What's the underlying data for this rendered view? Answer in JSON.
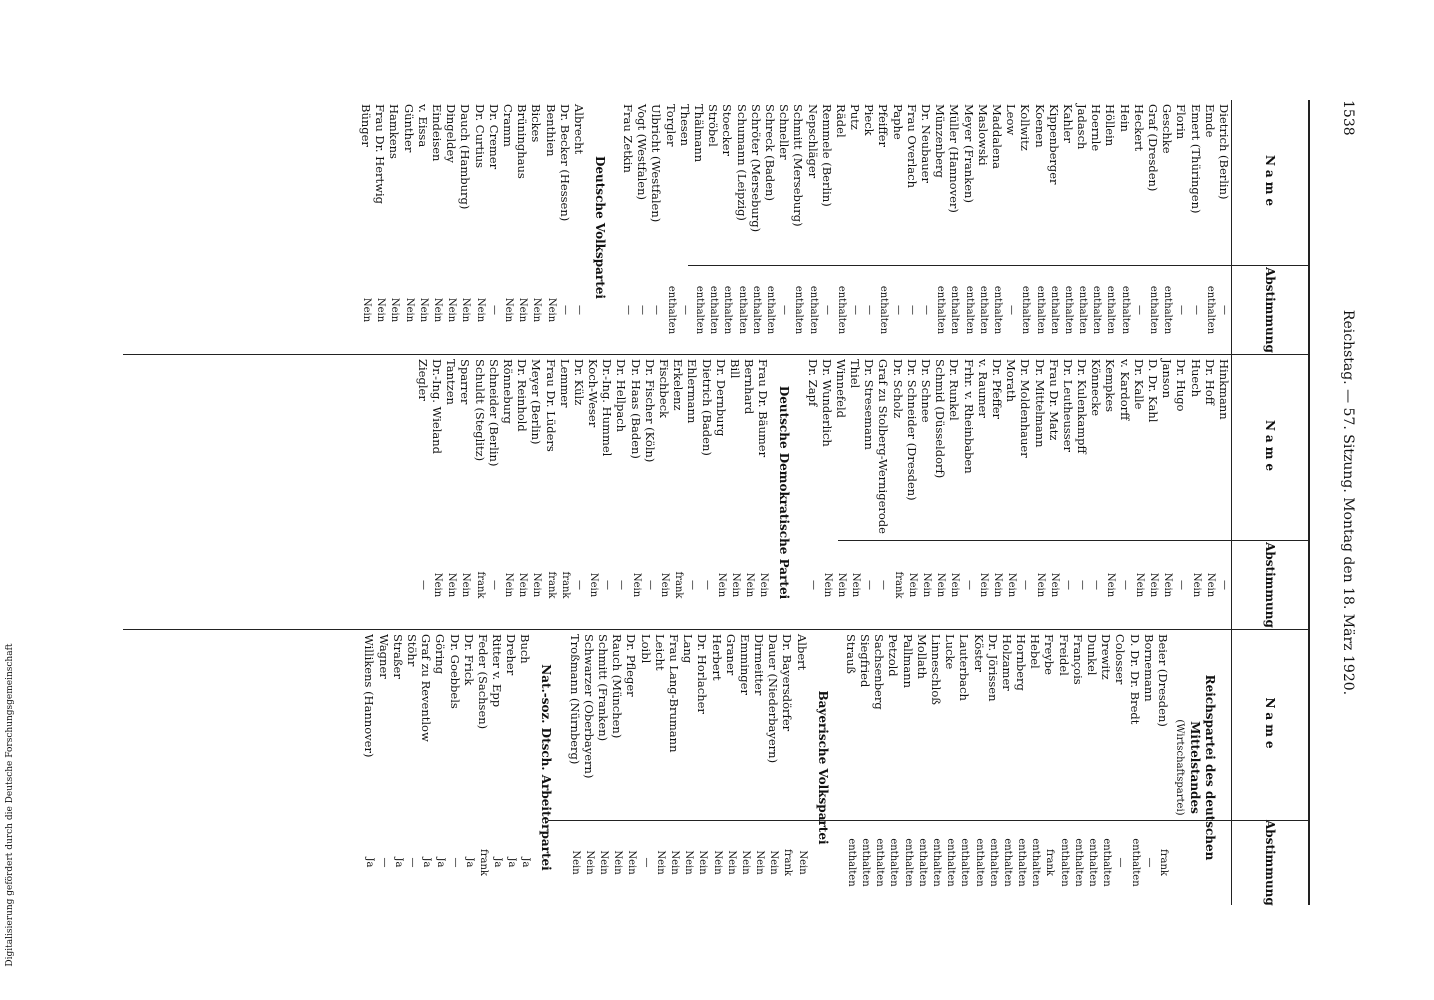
{
  "header": {
    "page": "1538",
    "title": "Reichstag. — 57. Sitzung. Montag den 18. März 1920."
  },
  "footer_note": "Digitalisierung gefördert durch die Deutsche Forschungsgemeinschaft",
  "columns": [
    {
      "name_header": "Name",
      "vote_header": "Abstimmung",
      "sections": [
        {
          "rows": [
            [
              "Dietrich (Berlin)",
              "—"
            ],
            [
              "Emde",
              "enthalten"
            ],
            [
              "Emert (Thüringen)",
              "—"
            ],
            [
              "Florin",
              "—"
            ],
            [
              "Geschke",
              "enthalten"
            ],
            [
              "Graf (Dresden)",
              "enthalten"
            ],
            [
              "Heckert",
              "—"
            ],
            [
              "Hein",
              "enthalten"
            ],
            [
              "Höllein",
              "enthalten"
            ],
            [
              "Hoernle",
              "enthalten"
            ],
            [
              "Jadasch",
              "enthalten"
            ],
            [
              "Kahler",
              "enthalten"
            ],
            [
              "Kippenberger",
              "enthalten"
            ],
            [
              "Koenen",
              "enthalten"
            ],
            [
              "Kollwitz",
              "enthalten"
            ],
            [
              "Leow",
              "—"
            ],
            [
              "Maddalena",
              "enthalten"
            ],
            [
              "Maslowski",
              "enthalten"
            ],
            [
              "Meyer (Franken)",
              "enthalten"
            ],
            [
              "Müller (Hannover)",
              "enthalten"
            ],
            [
              "Münzenberg",
              "enthalten"
            ],
            [
              "Dr. Neubauer",
              "—"
            ],
            [
              "Frau Overlach",
              "—"
            ],
            [
              "Paphe",
              "—"
            ],
            [
              "Pfeiffer",
              "enthalten"
            ],
            [
              "Pieck",
              "—"
            ],
            [
              "Putz",
              "—"
            ],
            [
              "Rädel",
              "enthalten"
            ],
            [
              "Remmele (Berlin)",
              "—"
            ],
            [
              "Nepschläger",
              "enthalten"
            ],
            [
              "Schmitt (Merseburg)",
              "enthalten"
            ],
            [
              "Schneller",
              "—"
            ],
            [
              "Schreck (Baden)",
              "enthalten"
            ],
            [
              "Schröter (Merseburg)",
              "enthalten"
            ],
            [
              "Schumann (Leipzig)",
              "enthalten"
            ],
            [
              "Stoecker",
              "enthalten"
            ],
            [
              "Ströbel",
              "enthalten"
            ],
            [
              "Thälmann",
              "enthalten"
            ],
            [
              "Thesen",
              "—"
            ],
            [
              "Torgler",
              "enthalten"
            ],
            [
              "Ulbricht (Westfalen)",
              "—"
            ],
            [
              "Vogt (Westfalen)",
              "—"
            ],
            [
              "Frau Zetkin",
              "—"
            ]
          ]
        },
        {
          "heading": "Deutsche Volkspartei",
          "rows": [
            [
              "Albrecht",
              "—"
            ],
            [
              "Dr. Becker (Hessen)",
              "—"
            ],
            [
              "Benthien",
              "Nein"
            ],
            [
              "Bickes",
              "Nein"
            ],
            [
              "Brüninghaus",
              "Nein"
            ],
            [
              "Cramm",
              "Nein"
            ],
            [
              "Dr. Cremer",
              "—"
            ],
            [
              "Dr. Curtius",
              "Nein"
            ],
            [
              "Dauch (Hamburg)",
              "Nein"
            ],
            [
              "Dingeldey",
              "Nein"
            ],
            [
              "Eindeisen",
              "Nein"
            ],
            [
              "v. Eissa",
              "Nein"
            ],
            [
              "Günther",
              "Nein"
            ],
            [
              "Hamkens",
              "Nein"
            ],
            [
              "Frau Dr. Hertwig",
              "Nein"
            ],
            [
              "Bünger",
              "Nein"
            ]
          ]
        }
      ]
    },
    {
      "name_header": "Name",
      "vote_header": "Abstimmung",
      "sections": [
        {
          "rows": [
            [
              "Hinkmann",
              "—"
            ],
            [
              "Dr. Hoff",
              "Nein"
            ],
            [
              "Huech",
              "Nein"
            ],
            [
              "Dr. Hugo",
              "—"
            ],
            [
              "Janson",
              "Nein"
            ],
            [
              "D. Dr. Kahl",
              "Nein"
            ],
            [
              "Dr. Kalle",
              "Nein"
            ],
            [
              "v. Kardorff",
              "—"
            ],
            [
              "Kempkes",
              "Nein"
            ],
            [
              "Könnecke",
              "—"
            ],
            [
              "Dr. Kulenkampff",
              "—"
            ],
            [
              "Dr. Leutheusser",
              "—"
            ],
            [
              "Frau Dr. Matz",
              "Nein"
            ],
            [
              "Dr. Mittelmann",
              "Nein"
            ],
            [
              "Dr. Moldenhauer",
              "—"
            ],
            [
              "Morath",
              "Nein"
            ],
            [
              "Dr. Pfeffer",
              "Nein"
            ],
            [
              "v. Raumer",
              "Nein"
            ],
            [
              "Frhr. v. Rheinbaben",
              "—"
            ],
            [
              "Dr. Runkel",
              "Nein"
            ],
            [
              "Schmid (Düsseldorf)",
              "Nein"
            ],
            [
              "Dr. Schnee",
              "Nein"
            ],
            [
              "Dr. Schneider (Dresden)",
              "Nein"
            ],
            [
              "Dr. Scholz",
              "frank"
            ],
            [
              "Graf zu Stolberg-Wernigerode",
              "—"
            ],
            [
              "Dr. Stresemann",
              "—"
            ],
            [
              "Thiel",
              "Nein"
            ],
            [
              "Winnefeld",
              "Nein"
            ],
            [
              "Dr. Wunderlich",
              "Nein"
            ],
            [
              "Dr. Zapf",
              "—"
            ]
          ]
        },
        {
          "heading": "Deutsche Demokratische Partei",
          "rows": [
            [
              "Frau Dr. Bäumer",
              "Nein"
            ],
            [
              "Bernhard",
              "Nein"
            ],
            [
              "Bill",
              "Nein"
            ],
            [
              "Dr. Dernburg",
              "Nein"
            ],
            [
              "Dietrich (Baden)",
              "—"
            ],
            [
              "Ehlermann",
              "—"
            ],
            [
              "Erkelenz",
              "frank"
            ],
            [
              "Fischbeck",
              "Nein"
            ],
            [
              "Dr. Fischer (Köln)",
              "—"
            ],
            [
              "Dr. Haas (Baden)",
              "Nein"
            ],
            [
              "Dr. Hellpach",
              "—"
            ],
            [
              "Dr.-Ing. Hummel",
              "—"
            ],
            [
              "Koch-Weser",
              "Nein"
            ],
            [
              "Dr. Külz",
              "—"
            ],
            [
              "Lemmer",
              "frank"
            ],
            [
              "Frau Dr. Lüders",
              "frank"
            ],
            [
              "Meyer (Berlin)",
              "Nein"
            ],
            [
              "Dr. Reinhold",
              "Nein"
            ],
            [
              "Rönneburg",
              "Nein"
            ],
            [
              "Schneider (Berlin)",
              "—"
            ],
            [
              "Schuldt (Steglitz)",
              "frank"
            ],
            [
              "Sparrer",
              "Nein"
            ],
            [
              "Tantzen",
              "Nein"
            ],
            [
              "Dr.-Ing. Wieland",
              "Nein"
            ],
            [
              "Ziegler",
              "—"
            ]
          ]
        }
      ]
    },
    {
      "name_header": "Name",
      "vote_header": "Abstimmung",
      "sections": [
        {
          "heading": "Reichspartei des deutschen Mittelstandes",
          "subheading": "(Wirtschaftspartei)",
          "rows": [
            [
              "Beier (Dresden)",
              "frank"
            ],
            [
              "Bornemann",
              "—"
            ],
            [
              "D. Dr. Dr. Bredt",
              "enthalten"
            ],
            [
              "Colosser",
              "—"
            ],
            [
              "Drewitz",
              "enthalten"
            ],
            [
              "Dunkel",
              "enthalten"
            ],
            [
              "François",
              "enthalten"
            ],
            [
              "Freidel",
              "enthalten"
            ],
            [
              "Freybe",
              "frank"
            ],
            [
              "Hebel",
              "enthalten"
            ],
            [
              "Hornberg",
              "enthalten"
            ],
            [
              "Holzamer",
              "enthalten"
            ],
            [
              "Dr. Jörissen",
              "enthalten"
            ],
            [
              "Köster",
              "enthalten"
            ],
            [
              "Lauterbach",
              "enthalten"
            ],
            [
              "Lucke",
              "enthalten"
            ],
            [
              "Linneschloß",
              "enthalten"
            ],
            [
              "Mollath",
              "enthalten"
            ],
            [
              "Pallmann",
              "enthalten"
            ],
            [
              "Petzold",
              "enthalten"
            ],
            [
              "Sachsenberg",
              "enthalten"
            ],
            [
              "Siegfried",
              "enthalten"
            ],
            [
              "Strauß",
              "enthalten"
            ]
          ]
        },
        {
          "heading": "Bayerische Volkspartei",
          "rows": [
            [
              "Albert",
              "Nein"
            ],
            [
              "Dr. Bayersdörfer",
              "frank"
            ],
            [
              "Dauer (Niederbayern)",
              "Nein"
            ],
            [
              "Dirmeitter",
              "Nein"
            ],
            [
              "Emminger",
              "Nein"
            ],
            [
              "Graner",
              "Nein"
            ],
            [
              "Herbert",
              "Nein"
            ],
            [
              "Dr. Horlacher",
              "Nein"
            ],
            [
              "Lang",
              "Nein"
            ],
            [
              "Frau Lang-Brumann",
              "Nein"
            ],
            [
              "Leicht",
              "Nein"
            ],
            [
              "Loibl",
              "—"
            ],
            [
              "Dr. Pfleger",
              "Nein"
            ],
            [
              "Rauch (München)",
              "Nein"
            ],
            [
              "Schmitt (Franken)",
              "Nein"
            ],
            [
              "Schwarzer (Oberbayern)",
              "Nein"
            ],
            [
              "Troßmann (Nürnberg)",
              "Nein"
            ]
          ]
        },
        {
          "heading": "Nat.-soz. Dtsch. Arbeiterpartei",
          "rows": [
            [
              "Buch",
              "Ja"
            ],
            [
              "Dreher",
              "Ja"
            ],
            [
              "Ritter v. Epp",
              "Ja"
            ],
            [
              "Feder (Sachsen)",
              "frank"
            ],
            [
              "Dr. Frick",
              "Ja"
            ],
            [
              "Dr. Goebbels",
              "—"
            ],
            [
              "Göring",
              "Ja"
            ],
            [
              "Graf zu Reventlow",
              "Ja"
            ],
            [
              "Stöhr",
              "—"
            ],
            [
              "Straßer",
              "Ja"
            ],
            [
              "Wagner",
              "—"
            ],
            [
              "Willikens (Hannover)",
              "Ja"
            ]
          ]
        }
      ]
    }
  ]
}
